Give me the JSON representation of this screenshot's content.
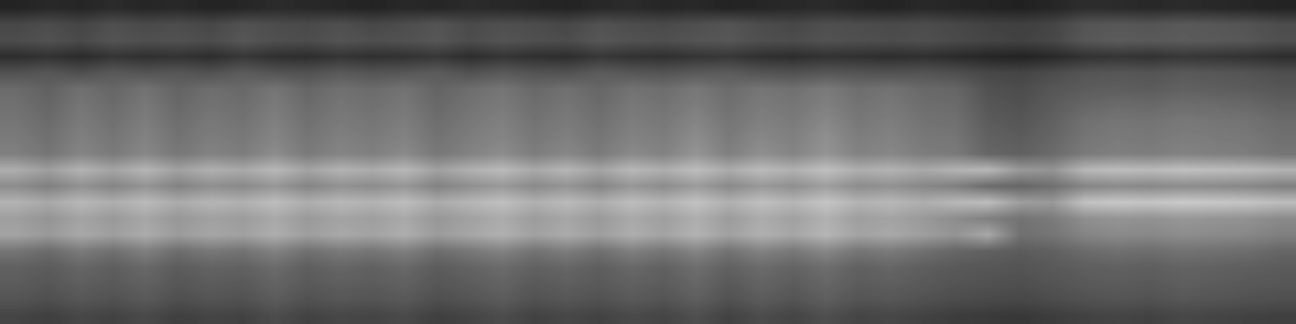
{
  "chart_data": {
    "type": "heatmap",
    "color": "gray",
    "tick_labels": false,
    "zlim": [
      0,
      100
    ],
    "cells": [
      [
        14,
        16,
        15,
        17,
        15,
        16,
        14,
        15,
        17,
        16,
        15,
        14,
        16,
        15,
        17,
        16,
        15,
        14,
        16,
        17,
        15,
        16,
        14,
        15,
        16,
        17,
        15,
        14,
        16,
        15,
        14,
        13,
        15,
        18,
        17,
        16,
        17,
        16,
        15,
        14
      ],
      [
        28,
        30,
        27,
        31,
        29,
        30,
        28,
        32,
        30,
        29,
        31,
        28,
        30,
        33,
        29,
        31,
        30,
        28,
        32,
        30,
        29,
        31,
        33,
        30,
        28,
        31,
        30,
        29,
        30,
        28,
        26,
        25,
        27,
        33,
        34,
        33,
        35,
        34,
        33,
        30
      ],
      [
        30,
        32,
        29,
        33,
        31,
        32,
        30,
        34,
        31,
        30,
        33,
        31,
        32,
        34,
        30,
        33,
        31,
        30,
        34,
        32,
        31,
        33,
        34,
        31,
        30,
        32,
        31,
        30,
        31,
        29,
        27,
        26,
        28,
        34,
        36,
        35,
        36,
        35,
        34,
        31
      ],
      [
        18,
        20,
        17,
        21,
        19,
        20,
        18,
        22,
        19,
        18,
        21,
        19,
        20,
        22,
        18,
        21,
        19,
        18,
        22,
        20,
        19,
        21,
        22,
        19,
        18,
        20,
        19,
        18,
        19,
        17,
        15,
        14,
        16,
        20,
        21,
        20,
        22,
        21,
        20,
        18
      ],
      [
        32,
        34,
        31,
        35,
        33,
        34,
        32,
        36,
        33,
        32,
        35,
        33,
        34,
        36,
        32,
        35,
        33,
        32,
        36,
        34,
        33,
        35,
        36,
        33,
        32,
        34,
        33,
        32,
        33,
        31,
        28,
        27,
        30,
        33,
        34,
        33,
        35,
        34,
        33,
        31
      ],
      [
        42,
        38,
        44,
        40,
        45,
        39,
        43,
        41,
        46,
        40,
        44,
        42,
        45,
        39,
        43,
        46,
        41,
        44,
        40,
        45,
        43,
        47,
        42,
        46,
        44,
        48,
        43,
        45,
        41,
        40,
        32,
        30,
        34,
        36,
        37,
        36,
        38,
        37,
        36,
        34
      ],
      [
        44,
        40,
        46,
        42,
        47,
        41,
        45,
        43,
        48,
        42,
        46,
        44,
        47,
        41,
        45,
        48,
        43,
        46,
        42,
        47,
        45,
        49,
        44,
        48,
        46,
        50,
        45,
        47,
        43,
        42,
        34,
        32,
        36,
        40,
        42,
        41,
        43,
        42,
        41,
        38
      ],
      [
        46,
        42,
        48,
        44,
        49,
        43,
        47,
        45,
        50,
        44,
        48,
        46,
        49,
        43,
        47,
        50,
        45,
        48,
        44,
        49,
        47,
        52,
        46,
        50,
        48,
        53,
        47,
        49,
        45,
        44,
        36,
        34,
        38,
        44,
        46,
        45,
        47,
        46,
        45,
        42
      ],
      [
        48,
        44,
        50,
        46,
        51,
        45,
        49,
        47,
        52,
        46,
        50,
        48,
        51,
        45,
        49,
        52,
        47,
        50,
        46,
        51,
        49,
        55,
        48,
        53,
        50,
        56,
        49,
        51,
        47,
        46,
        38,
        36,
        40,
        46,
        48,
        47,
        49,
        48,
        47,
        44
      ],
      [
        50,
        46,
        52,
        48,
        53,
        47,
        51,
        49,
        55,
        48,
        52,
        50,
        54,
        47,
        51,
        55,
        49,
        53,
        48,
        54,
        51,
        58,
        50,
        56,
        52,
        58,
        51,
        53,
        49,
        48,
        40,
        38,
        42,
        48,
        50,
        49,
        51,
        50,
        49,
        46
      ],
      [
        68,
        62,
        70,
        64,
        71,
        63,
        69,
        66,
        72,
        64,
        70,
        67,
        72,
        63,
        69,
        73,
        66,
        71,
        64,
        72,
        68,
        74,
        67,
        73,
        69,
        75,
        68,
        70,
        66,
        70,
        72,
        60,
        58,
        72,
        74,
        73,
        75,
        74,
        73,
        70
      ],
      [
        55,
        50,
        57,
        52,
        58,
        51,
        56,
        54,
        59,
        52,
        57,
        55,
        59,
        51,
        56,
        60,
        54,
        58,
        52,
        59,
        55,
        61,
        54,
        60,
        56,
        62,
        55,
        57,
        53,
        50,
        42,
        40,
        44,
        52,
        54,
        53,
        55,
        54,
        53,
        50
      ],
      [
        70,
        66,
        72,
        68,
        73,
        67,
        71,
        69,
        74,
        68,
        72,
        70,
        74,
        67,
        71,
        75,
        69,
        73,
        68,
        74,
        70,
        76,
        69,
        75,
        71,
        77,
        70,
        72,
        68,
        72,
        74,
        62,
        60,
        76,
        78,
        77,
        79,
        78,
        77,
        74
      ],
      [
        62,
        58,
        64,
        60,
        65,
        59,
        63,
        61,
        66,
        60,
        64,
        62,
        66,
        59,
        63,
        67,
        61,
        65,
        60,
        66,
        62,
        68,
        61,
        67,
        63,
        69,
        62,
        64,
        60,
        55,
        50,
        45,
        48,
        56,
        58,
        57,
        59,
        58,
        57,
        54
      ],
      [
        64,
        60,
        66,
        62,
        67,
        61,
        65,
        63,
        68,
        62,
        66,
        64,
        68,
        61,
        65,
        69,
        63,
        67,
        62,
        68,
        64,
        70,
        63,
        69,
        65,
        71,
        64,
        66,
        62,
        58,
        66,
        44,
        46,
        52,
        54,
        53,
        55,
        54,
        53,
        50
      ],
      [
        46,
        42,
        48,
        44,
        50,
        43,
        47,
        45,
        51,
        44,
        48,
        46,
        50,
        43,
        47,
        51,
        45,
        49,
        44,
        50,
        46,
        52,
        45,
        51,
        47,
        53,
        46,
        48,
        44,
        40,
        38,
        36,
        38,
        42,
        44,
        43,
        45,
        44,
        43,
        40
      ],
      [
        38,
        36,
        40,
        37,
        41,
        36,
        39,
        38,
        42,
        37,
        40,
        38,
        41,
        36,
        39,
        42,
        38,
        40,
        37,
        41,
        38,
        43,
        38,
        42,
        39,
        43,
        38,
        40,
        37,
        35,
        34,
        33,
        35,
        37,
        38,
        37,
        39,
        38,
        37,
        36
      ],
      [
        36,
        34,
        37,
        35,
        38,
        34,
        36,
        35,
        39,
        35,
        37,
        36,
        38,
        34,
        36,
        39,
        35,
        37,
        35,
        38,
        36,
        40,
        35,
        39,
        36,
        40,
        36,
        37,
        35,
        33,
        32,
        31,
        33,
        35,
        36,
        35,
        37,
        36,
        35,
        34
      ],
      [
        33,
        31,
        34,
        32,
        35,
        31,
        33,
        32,
        36,
        32,
        34,
        33,
        35,
        31,
        33,
        36,
        32,
        34,
        32,
        35,
        33,
        37,
        32,
        36,
        33,
        37,
        33,
        34,
        32,
        30,
        29,
        28,
        30,
        32,
        33,
        32,
        34,
        33,
        32,
        31
      ],
      [
        27,
        25,
        28,
        26,
        29,
        25,
        27,
        26,
        30,
        26,
        28,
        27,
        29,
        25,
        27,
        30,
        26,
        28,
        26,
        29,
        27,
        31,
        26,
        30,
        27,
        31,
        27,
        28,
        26,
        24,
        23,
        22,
        24,
        26,
        27,
        26,
        28,
        27,
        26,
        25
      ]
    ]
  }
}
